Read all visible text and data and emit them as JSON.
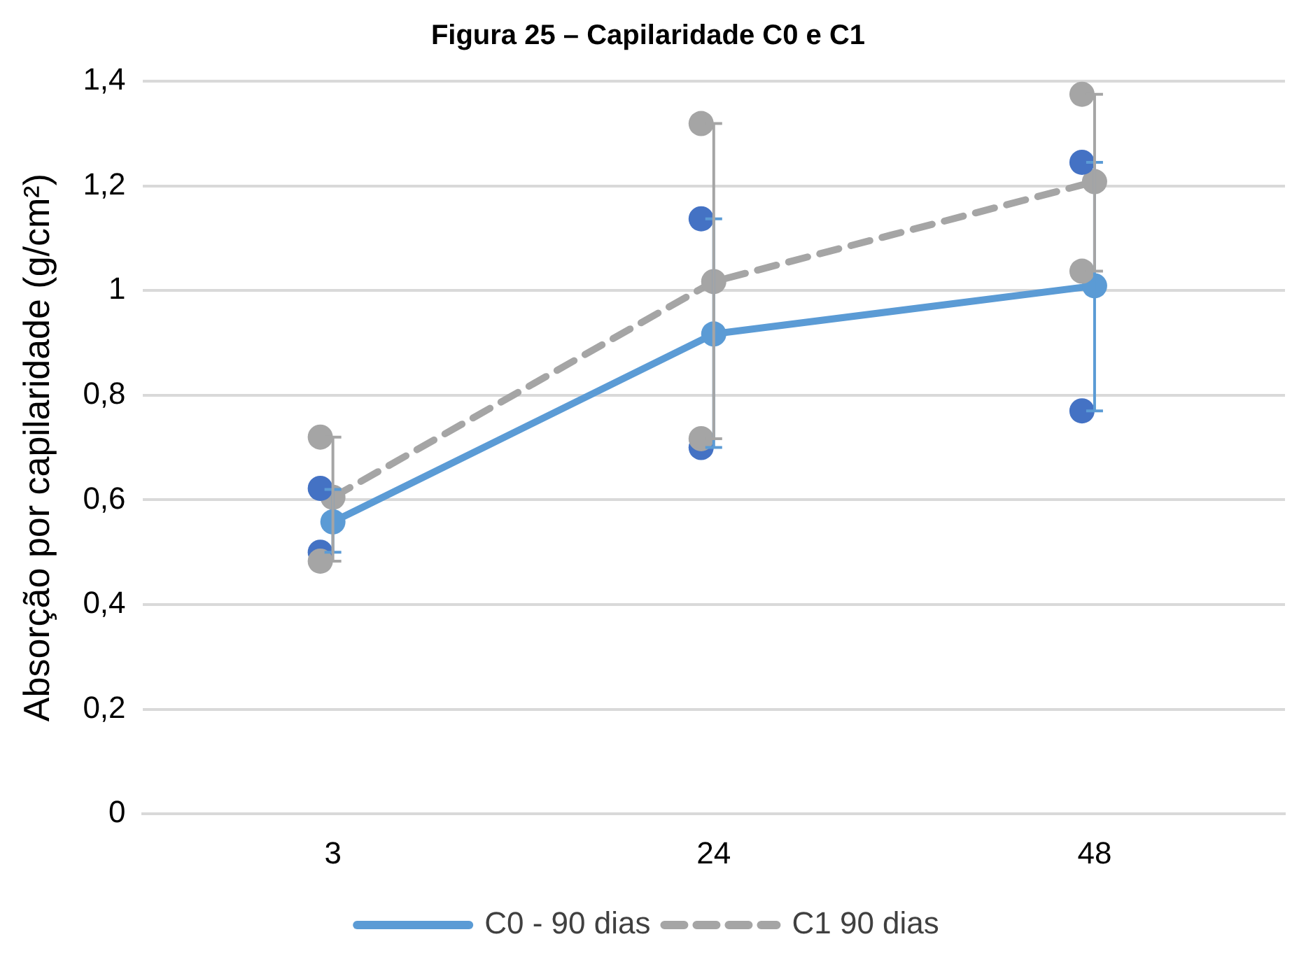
{
  "chart_data": {
    "type": "line",
    "title": "Figura 25 – Capilaridade C0 e C1",
    "ylabel": "Absorção por capilaridade (g/cm²)",
    "categories": [
      "3",
      "24",
      "48"
    ],
    "series": [
      {
        "name": "C0 - 90 dias",
        "color": "#5b9bd5",
        "values": [
          0.558,
          0.917,
          1.009
        ],
        "errors": [
          [
            0.5,
            0.62
          ],
          [
            0.7,
            1.137
          ],
          [
            0.77,
            1.245
          ]
        ],
        "marker": "circle",
        "line_style": "solid"
      },
      {
        "name": "C1 90 dias",
        "color": "#a5a5a5",
        "values": [
          0.605,
          1.017,
          1.208
        ],
        "errors": [
          [
            0.483,
            0.72
          ],
          [
            0.717,
            1.319
          ],
          [
            1.037,
            1.375
          ]
        ],
        "marker": "circle",
        "line_style": "dashed"
      },
      {
        "type": "scatter",
        "color": "#4472c4",
        "x": [
          "3",
          "3",
          "24",
          "24",
          "48",
          "48"
        ],
        "values": [
          0.622,
          0.5,
          1.137,
          0.7,
          1.245,
          0.77
        ],
        "marker": "circle"
      },
      {
        "type": "scatter",
        "color": "#a5a5a5",
        "x": [
          "3",
          "3",
          "24",
          "24",
          "48",
          "48"
        ],
        "values": [
          0.72,
          0.483,
          1.319,
          0.717,
          1.375,
          1.037
        ],
        "marker": "circle"
      }
    ],
    "ylim": [
      0,
      1.4
    ],
    "yticks": [
      {
        "value": 0,
        "label": "0"
      },
      {
        "value": 0.2,
        "label": "0,2"
      },
      {
        "value": 0.4,
        "label": "0,4"
      },
      {
        "value": 0.6,
        "label": "0,6"
      },
      {
        "value": 0.8,
        "label": "0,8"
      },
      {
        "value": 1,
        "label": "1"
      },
      {
        "value": 1.2,
        "label": "1,2"
      },
      {
        "value": 1.4,
        "label": "1,4"
      }
    ],
    "grid": "y",
    "legend": "bottom"
  }
}
